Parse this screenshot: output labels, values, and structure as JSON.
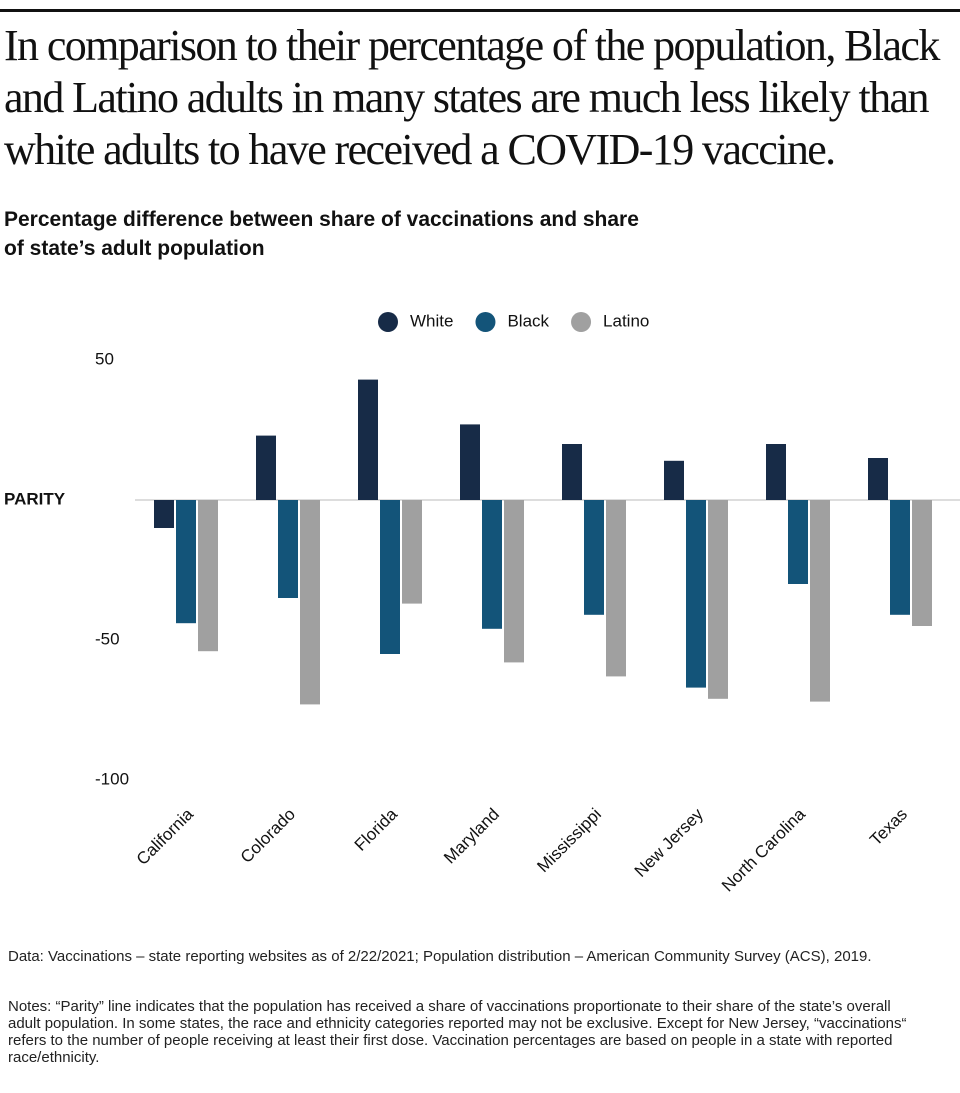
{
  "chart_data": {
    "type": "bar",
    "title": "In comparison to their percentage of the population, Black and Latino adults in many states are much less likely than white adults to have received a COVID-19 vaccine.",
    "subtitle": "Percentage difference between share of vaccinations and share of state’s adult population",
    "categories": [
      "California",
      "Colorado",
      "Florida",
      "Maryland",
      "Mississippi",
      "New Jersey",
      "North Carolina",
      "Texas"
    ],
    "series": [
      {
        "name": "White",
        "color": "#172b47",
        "values": [
          -10,
          23,
          43,
          27,
          20,
          14,
          20,
          15
        ]
      },
      {
        "name": "Black",
        "color": "#135479",
        "values": [
          -44,
          -35,
          -55,
          -46,
          -41,
          -67,
          -30,
          -41
        ]
      },
      {
        "name": "Latino",
        "color": "#a0a0a0",
        "values": [
          -54,
          -73,
          -37,
          -58,
          -63,
          -71,
          -72,
          -45
        ]
      }
    ],
    "ylim": [
      -100,
      50
    ],
    "yticks": [
      50,
      {
        "value": 0,
        "label": "PARITY"
      },
      -50,
      -100
    ],
    "grid": false,
    "legend": "top",
    "source": "Data: Vaccinations – state reporting websites as of 2/22/2021; Population distribution – American Community Survey (ACS), 2019.",
    "notes": "Notes: “Parity” line indicates that the population has received a share of vaccinations proportionate to their share of the state’s overall adult population. In some states, the race and ethnicity categories reported may not be exclusive. Except for New Jersey, “vaccinations“ refers to the number of people receiving at least their first dose. Vaccination percentages are based on people in a state with reported race/ethnicity."
  }
}
